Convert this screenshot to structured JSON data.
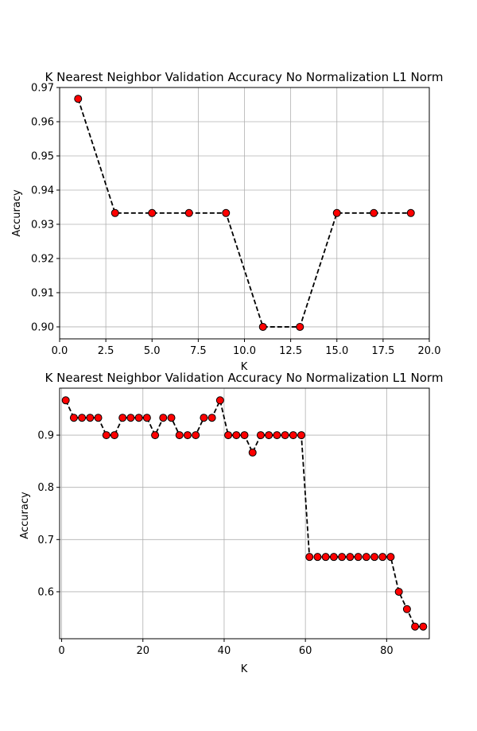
{
  "chart_data": [
    {
      "type": "line",
      "title": "K Nearest Neighbor Validation Accuracy No Normalization L1 Norm",
      "xlabel": "K",
      "ylabel": "Accuracy",
      "xlim": [
        0,
        20
      ],
      "ylim": [
        0.8965,
        0.97
      ],
      "xticks": [
        0,
        2.5,
        5,
        7.5,
        10,
        12.5,
        15,
        17.5,
        20
      ],
      "xtick_labels": [
        "0.0",
        "2.5",
        "5.0",
        "7.5",
        "10.0",
        "12.5",
        "15.0",
        "17.5",
        "20.0"
      ],
      "yticks": [
        0.9,
        0.91,
        0.92,
        0.93,
        0.94,
        0.95,
        0.96,
        0.97
      ],
      "ytick_labels": [
        "0.90",
        "0.91",
        "0.92",
        "0.93",
        "0.94",
        "0.95",
        "0.96",
        "0.97"
      ],
      "grid": true,
      "line_style": "dashed",
      "line_color": "#000000",
      "marker_color": "#ff0000",
      "x": [
        1,
        3,
        5,
        7,
        9,
        11,
        13,
        15,
        17,
        19
      ],
      "y": [
        0.9667,
        0.9333,
        0.9333,
        0.9333,
        0.9333,
        0.9,
        0.9,
        0.9333,
        0.9333,
        0.9333
      ]
    },
    {
      "type": "line",
      "title": "K Nearest Neighbor Validation Accuracy No Normalization L1 Norm",
      "xlabel": "K",
      "ylabel": "Accuracy",
      "xlim": [
        -0.5,
        90.5
      ],
      "ylim": [
        0.51,
        0.99
      ],
      "xticks": [
        0,
        20,
        40,
        60,
        80
      ],
      "xtick_labels": [
        "0",
        "20",
        "40",
        "60",
        "80"
      ],
      "yticks": [
        0.6,
        0.7,
        0.8,
        0.9
      ],
      "ytick_labels": [
        "0.6",
        "0.7",
        "0.8",
        "0.9"
      ],
      "grid": true,
      "line_style": "dashed",
      "line_color": "#000000",
      "marker_color": "#ff0000",
      "x": [
        1,
        3,
        5,
        7,
        9,
        11,
        13,
        15,
        17,
        19,
        21,
        23,
        25,
        27,
        29,
        31,
        33,
        35,
        37,
        39,
        41,
        43,
        45,
        47,
        49,
        51,
        53,
        55,
        57,
        59,
        61,
        63,
        65,
        67,
        69,
        71,
        73,
        75,
        77,
        79,
        81,
        83,
        85,
        87,
        89
      ],
      "y": [
        0.9667,
        0.9333,
        0.9333,
        0.9333,
        0.9333,
        0.9,
        0.9,
        0.9333,
        0.9333,
        0.9333,
        0.9333,
        0.9,
        0.9333,
        0.9333,
        0.9,
        0.9,
        0.9,
        0.9333,
        0.9333,
        0.9667,
        0.9,
        0.9,
        0.9,
        0.8667,
        0.9,
        0.9,
        0.9,
        0.9,
        0.9,
        0.9,
        0.6667,
        0.6667,
        0.6667,
        0.6667,
        0.6667,
        0.6667,
        0.6667,
        0.6667,
        0.6667,
        0.6667,
        0.6667,
        0.6,
        0.5667,
        0.5333,
        0.5333
      ]
    }
  ]
}
